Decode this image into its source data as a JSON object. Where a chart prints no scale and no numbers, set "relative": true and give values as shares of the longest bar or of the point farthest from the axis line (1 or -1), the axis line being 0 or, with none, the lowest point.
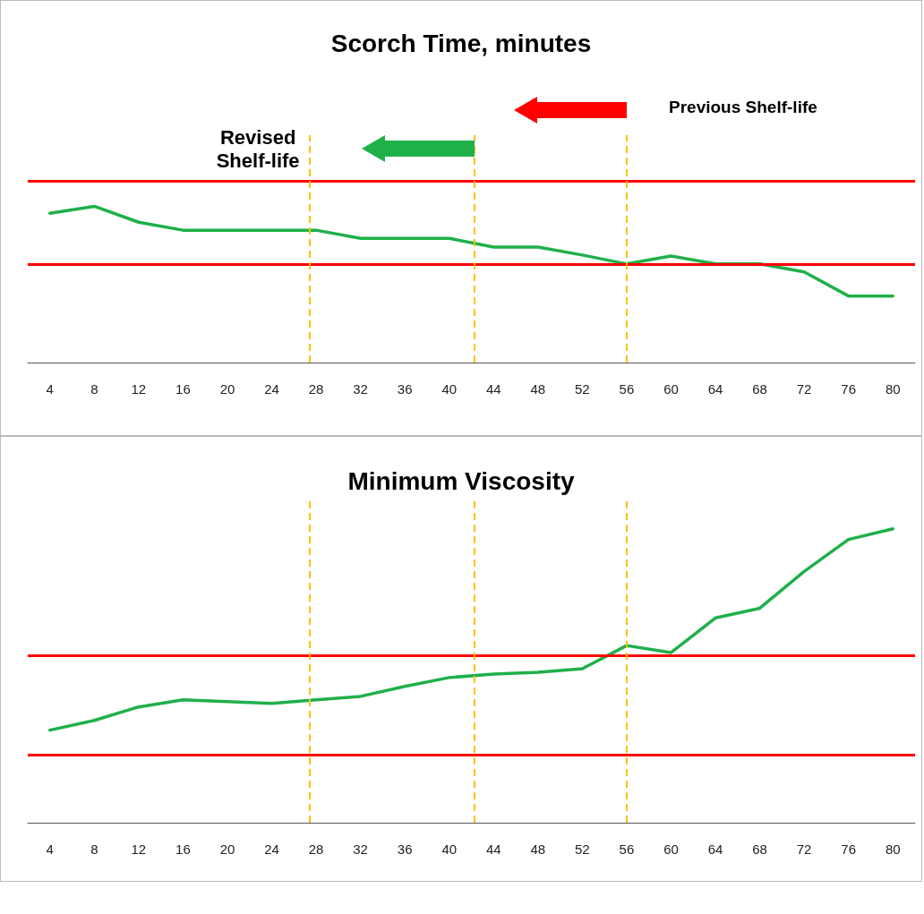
{
  "chart_data": [
    {
      "type": "line",
      "title": "Scorch Time, minutes",
      "relative": true,
      "tick_labels": "x",
      "marker": "none",
      "line_style": "solid",
      "x": [
        4,
        8,
        12,
        16,
        20,
        24,
        28,
        32,
        36,
        40,
        44,
        48,
        52,
        56,
        60,
        64,
        68,
        72,
        76,
        80
      ],
      "xlim": [
        2,
        82
      ],
      "xticks": [
        4,
        8,
        12,
        16,
        20,
        24,
        28,
        32,
        36,
        40,
        44,
        48,
        52,
        56,
        60,
        64,
        68,
        72,
        76,
        80
      ],
      "color": "#1fb04a",
      "values": [
        0.955,
        1,
        0.898,
        0.847,
        0.847,
        0.847,
        0.847,
        0.795,
        0.795,
        0.795,
        0.739,
        0.739,
        0.688,
        0.631,
        0.682,
        0.631,
        0.631,
        0.58,
        0.426,
        0.426
      ],
      "ref_lines": [
        {
          "axis": "y",
          "value": 1.159,
          "color": "#ff0000",
          "line_style": "solid"
        },
        {
          "axis": "y",
          "value": 0.631,
          "color": "#ff0000",
          "line_style": "solid"
        },
        {
          "axis": "x",
          "value": 27.4,
          "color": "#ffc000",
          "line_style": "dashed"
        },
        {
          "axis": "x",
          "value": 42.3,
          "color": "#ffc000",
          "line_style": "dashed"
        },
        {
          "axis": "x",
          "value": 56,
          "color": "#ffc000",
          "line_style": "dashed"
        }
      ],
      "annotations": [
        "Revised Shelf-life",
        "Previous Shelf-life"
      ]
    },
    {
      "type": "line",
      "title": "Minimum Viscosity",
      "relative": true,
      "tick_labels": "x",
      "marker": "none",
      "line_style": "solid",
      "x": [
        4,
        8,
        12,
        16,
        20,
        24,
        28,
        32,
        36,
        40,
        44,
        48,
        52,
        56,
        60,
        64,
        68,
        72,
        76,
        80
      ],
      "xlim": [
        2,
        82
      ],
      "xticks": [
        4,
        8,
        12,
        16,
        20,
        24,
        28,
        32,
        36,
        40,
        44,
        48,
        52,
        56,
        60,
        64,
        68,
        72,
        76,
        80
      ],
      "color": "#1fb04a",
      "values": [
        0.315,
        0.348,
        0.394,
        0.418,
        0.412,
        0.406,
        0.418,
        0.43,
        0.464,
        0.494,
        0.506,
        0.512,
        0.524,
        0.603,
        0.579,
        0.697,
        0.73,
        0.855,
        0.964,
        1
      ],
      "ref_lines": [
        {
          "axis": "y",
          "value": 0.567,
          "color": "#ff0000",
          "line_style": "solid"
        },
        {
          "axis": "y",
          "value": 0.233,
          "color": "#ff0000",
          "line_style": "solid"
        },
        {
          "axis": "x",
          "value": 27.4,
          "color": "#ffc000",
          "line_style": "dashed"
        },
        {
          "axis": "x",
          "value": 42.3,
          "color": "#ffc000",
          "line_style": "dashed"
        },
        {
          "axis": "x",
          "value": 56,
          "color": "#ffc000",
          "line_style": "dashed"
        }
      ]
    }
  ]
}
